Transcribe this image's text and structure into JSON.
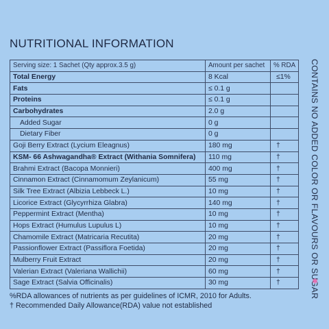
{
  "title": "NUTRITIONAL INFORMATION",
  "header": {
    "serving": "Serving size: 1 Sachet (Qty approx.3.5 g)",
    "amount": "Amount per sachet",
    "rda": "% RDA"
  },
  "rows": [
    {
      "name": "Total Energy",
      "amount": "8 Kcal",
      "rda": "≤1%",
      "style": "bold"
    },
    {
      "name": "Fats",
      "amount": "≤ 0.1 g",
      "rda": "",
      "style": "bold"
    },
    {
      "name": "Proteins",
      "amount": "≤ 0.1 g",
      "rda": "",
      "style": "bold"
    },
    {
      "name": "Carbohydrates",
      "amount": "2.0 g",
      "rda": "",
      "style": "bold"
    },
    {
      "name": "Added Sugar",
      "amount": "0 g",
      "rda": "",
      "style": "indent"
    },
    {
      "name": "Dietary Fiber",
      "amount": "0 g",
      "rda": "",
      "style": "indent"
    },
    {
      "name": "Goji Berry Extract (Lycium Eleagnus)",
      "amount": "180 mg",
      "rda": "†",
      "style": ""
    },
    {
      "name": "KSM- 66 Ashwagandha® Extract (Withania Somnifera)",
      "amount": "110 mg",
      "rda": "†",
      "style": "bold"
    },
    {
      "name": "Brahmi Extract (Bacopa Monnieri)",
      "amount": "400 mg",
      "rda": "†",
      "style": ""
    },
    {
      "name": "Cinnamon Extract (Cinnamomum Zeylanicum)",
      "amount": "55 mg",
      "rda": "†",
      "style": ""
    },
    {
      "name": "Silk Tree Extract (Albizia Lebbeck L.)",
      "amount": "10 mg",
      "rda": "†",
      "style": ""
    },
    {
      "name": "Licorice Extract (Glycyrrhiza Glabra)",
      "amount": "140 mg",
      "rda": "†",
      "style": ""
    },
    {
      "name": "Peppermint Extract (Mentha)",
      "amount": "10 mg",
      "rda": "†",
      "style": ""
    },
    {
      "name": "Hops Extract (Humulus Lupulus L)",
      "amount": "10 mg",
      "rda": "†",
      "style": ""
    },
    {
      "name": "Chamomile Extract (Matricaria Recutita)",
      "amount": "20 mg",
      "rda": "†",
      "style": ""
    },
    {
      "name": "Passionflower Extract (Passiflora Foetida)",
      "amount": "20 mg",
      "rda": "†",
      "style": ""
    },
    {
      "name": "Mulberry Fruit Extract",
      "amount": "20 mg",
      "rda": "†",
      "style": ""
    },
    {
      "name": "Valerian Extract (Valeriana Wallichii)",
      "amount": "60 mg",
      "rda": "†",
      "style": ""
    },
    {
      "name": "Sage Extract (Salvia Officinalis)",
      "amount": "30 mg",
      "rda": "†",
      "style": ""
    }
  ],
  "side_text": "CONTAINS NO ADDED COLOR OR FLAVOURS OR SUGAR",
  "footnotes": [
    "%RDA allowances of nutrients as per guidelines of ICMR, 2010 for Adults.",
    "† Recommended Daily Allowance(RDA) value not established"
  ],
  "colors": {
    "background": "#a8cdf0",
    "text": "#1f2a44",
    "accent": "#e86fb0"
  },
  "icons": {
    "sparkle": "sparkle-icon"
  }
}
